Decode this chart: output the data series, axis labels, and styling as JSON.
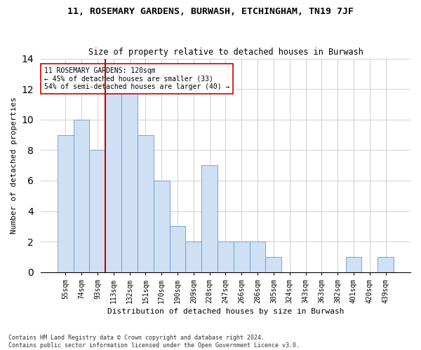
{
  "title": "11, ROSEMARY GARDENS, BURWASH, ETCHINGHAM, TN19 7JF",
  "subtitle": "Size of property relative to detached houses in Burwash",
  "xlabel": "Distribution of detached houses by size in Burwash",
  "ylabel": "Number of detached properties",
  "categories": [
    "55sqm",
    "74sqm",
    "93sqm",
    "113sqm",
    "132sqm",
    "151sqm",
    "170sqm",
    "190sqm",
    "209sqm",
    "228sqm",
    "247sqm",
    "266sqm",
    "286sqm",
    "305sqm",
    "324sqm",
    "343sqm",
    "363sqm",
    "382sqm",
    "401sqm",
    "420sqm",
    "439sqm"
  ],
  "values": [
    9,
    10,
    8,
    12,
    12,
    9,
    6,
    3,
    2,
    7,
    2,
    2,
    2,
    1,
    0,
    0,
    0,
    0,
    1,
    0,
    1
  ],
  "bar_color": "#cfe0f5",
  "bar_edge_color": "#6699cc",
  "vline_color": "#cc0000",
  "annotation_text": "11 ROSEMARY GARDENS: 120sqm\n← 45% of detached houses are smaller (33)\n54% of semi-detached houses are larger (40) →",
  "annotation_box_color": "#ffffff",
  "annotation_box_edge": "#cc0000",
  "ylim": [
    0,
    14
  ],
  "yticks": [
    0,
    2,
    4,
    6,
    8,
    10,
    12,
    14
  ],
  "footer": "Contains HM Land Registry data © Crown copyright and database right 2024.\nContains public sector information licensed under the Open Government Licence v3.0.",
  "title_fontsize": 9.5,
  "subtitle_fontsize": 8.5,
  "xlabel_fontsize": 8,
  "ylabel_fontsize": 8,
  "tick_fontsize": 7,
  "annotation_fontsize": 7,
  "footer_fontsize": 6
}
